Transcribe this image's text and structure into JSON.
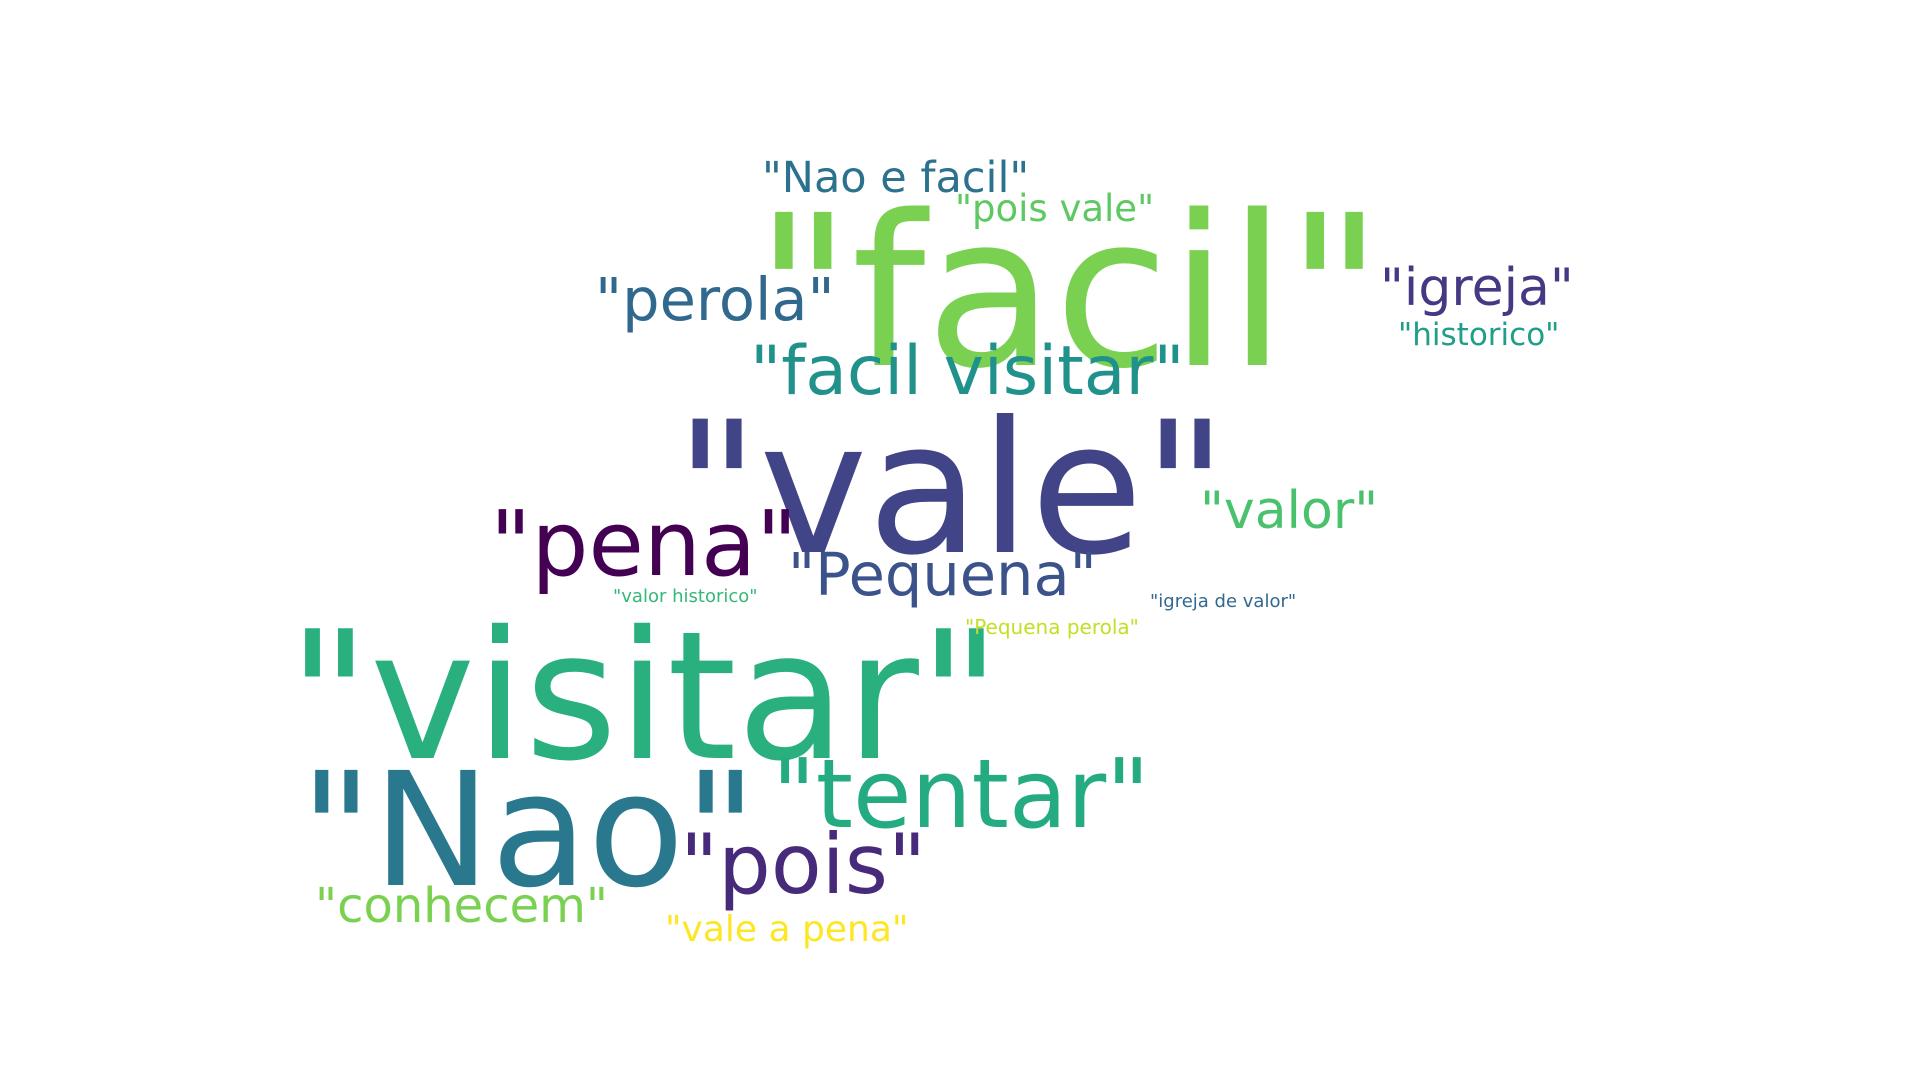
{
  "wordcloud": {
    "background": "#ffffff",
    "words": {
      "facil": {
        "text": "\"facil\"",
        "color": "#7ad151"
      },
      "vale": {
        "text": "\"vale\"",
        "color": "#414487"
      },
      "visitar": {
        "text": "\"visitar\"",
        "color": "#2ab07f"
      },
      "nao": {
        "text": "\"Nao\"",
        "color": "#2a788e"
      },
      "tentar": {
        "text": "\"tentar\"",
        "color": "#25ab82"
      },
      "pena": {
        "text": "\"pena\"",
        "color": "#440154"
      },
      "pois": {
        "text": "\"pois\"",
        "color": "#472a7a"
      },
      "facil_visitar": {
        "text": "\"facil visitar\"",
        "color": "#21918c"
      },
      "pequena": {
        "text": "\"Pequena\"",
        "color": "#3b528b"
      },
      "perola": {
        "text": "\"perola\"",
        "color": "#31688e"
      },
      "igreja": {
        "text": "\"igreja\"",
        "color": "#443983"
      },
      "valor": {
        "text": "\"valor\"",
        "color": "#4ac16d"
      },
      "conhecem": {
        "text": "\"conhecem\"",
        "color": "#7ad151"
      },
      "nao_e_facil": {
        "text": "\"Nao e facil\"",
        "color": "#2c728e"
      },
      "pois_vale": {
        "text": "\"pois vale\"",
        "color": "#5ec962"
      },
      "vale_a_pena": {
        "text": "\"vale a pena\"",
        "color": "#fde725"
      },
      "historico": {
        "text": "\"historico\"",
        "color": "#1f9e89"
      },
      "pequena_perola": {
        "text": "\"Pequena perola\"",
        "color": "#c2df23"
      },
      "igreja_de_valor": {
        "text": "\"igreja de valor\"",
        "color": "#31688e"
      },
      "valor_historico": {
        "text": "\"valor historico\"",
        "color": "#35b779"
      }
    }
  }
}
